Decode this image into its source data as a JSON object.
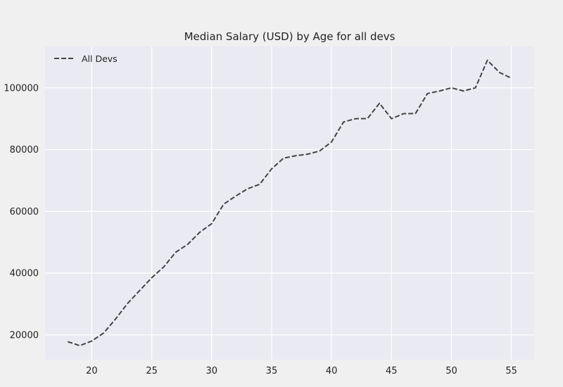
{
  "chart_data": {
    "type": "line",
    "title": "Median Salary (USD) by Age for all devs",
    "xlabel": "",
    "ylabel": "",
    "xlim": [
      16.1,
      56.9
    ],
    "ylim": [
      12000,
      113400
    ],
    "grid": true,
    "legend_position": "top-left",
    "x_ticks": [
      20,
      25,
      30,
      35,
      40,
      45,
      50,
      55
    ],
    "y_ticks": [
      20000,
      40000,
      60000,
      80000,
      100000
    ],
    "series": [
      {
        "name": "All Devs",
        "color": "#444444",
        "line_style": "dashed",
        "x": [
          18,
          19,
          20,
          21,
          22,
          23,
          24,
          25,
          26,
          27,
          28,
          29,
          30,
          31,
          32,
          33,
          34,
          35,
          36,
          37,
          38,
          39,
          40,
          41,
          42,
          43,
          44,
          45,
          46,
          47,
          48,
          49,
          50,
          51,
          52,
          53,
          54,
          55
        ],
        "y": [
          17784,
          16500,
          18012,
          20628,
          25206,
          30252,
          34368,
          38496,
          42000,
          46752,
          49320,
          53200,
          56000,
          62316,
          64928,
          67317,
          68748,
          73752,
          77232,
          78000,
          78508,
          79536,
          82488,
          88935,
          90000,
          90056,
          95000,
          90000,
          91633,
          91660,
          98150,
          98964,
          100000,
          98988,
          100000,
          108923,
          105000,
          103117
        ]
      }
    ]
  },
  "colors": {
    "figure_bg": "#f0f0f0",
    "axes_bg": "#eaeaf2",
    "grid": "#ffffff"
  }
}
